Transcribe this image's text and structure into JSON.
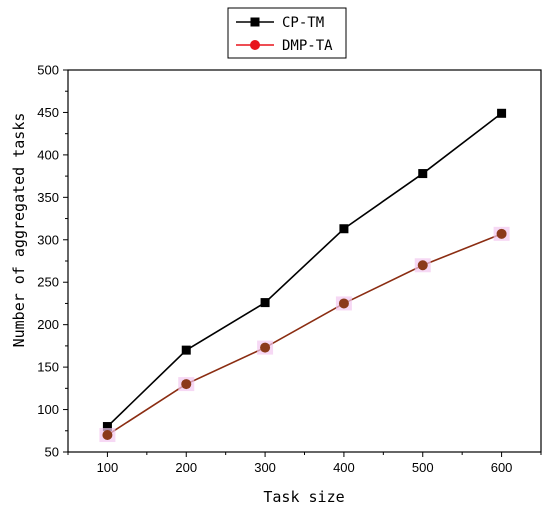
{
  "chart_data": {
    "type": "line",
    "xlabel": "Task size",
    "ylabel": "Number of aggregated tasks",
    "x": [
      100,
      200,
      300,
      400,
      500,
      600
    ],
    "xlim": [
      50,
      650
    ],
    "ylim": [
      50,
      500
    ],
    "xticks": [
      100,
      200,
      300,
      400,
      500,
      600
    ],
    "yticks": [
      50,
      100,
      150,
      200,
      250,
      300,
      350,
      400,
      450,
      500
    ],
    "grid": false,
    "legend_position": "top-center",
    "series": [
      {
        "name": "CP-TM",
        "color": "#000000",
        "marker": "square",
        "values": [
          80,
          170,
          226,
          313,
          378,
          449
        ]
      },
      {
        "name": "DMP-TA",
        "color": "#e8141b",
        "marker": "circle",
        "values": [
          70,
          130,
          173,
          225,
          270,
          307
        ]
      }
    ]
  }
}
